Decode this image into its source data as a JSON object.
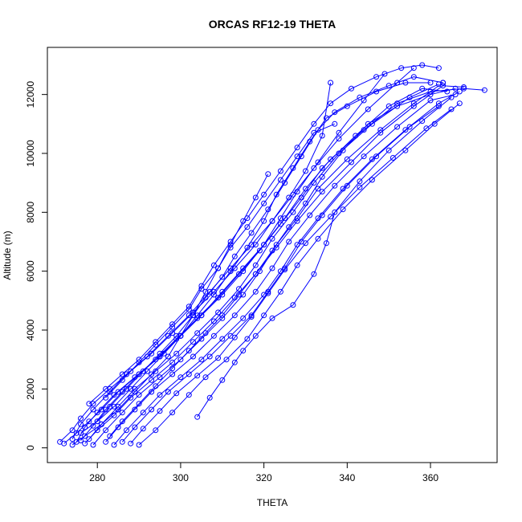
{
  "chart_data": {
    "type": "scatter",
    "title": "ORCAS RF12-19 THETA",
    "xlabel": "THETA",
    "ylabel": "Altitude (m)",
    "xlim": [
      268,
      376
    ],
    "ylim": [
      -500,
      13600
    ],
    "xticks": [
      280,
      300,
      320,
      340,
      360
    ],
    "yticks": [
      0,
      2000,
      4000,
      6000,
      8000,
      10000,
      12000
    ],
    "grid": false,
    "legend": "none",
    "marker": "open-circle",
    "line_style": "connected",
    "series_color": "#0000ff",
    "series": [
      {
        "x": [
          271,
          274,
          276,
          279,
          283,
          288,
          293,
          298,
          303,
          308,
          313,
          318,
          322,
          326,
          330,
          334,
          336
        ],
        "y": [
          200,
          600,
          1000,
          1500,
          2000,
          2600,
          3200,
          3900,
          4600,
          5300,
          6100,
          6900,
          7700,
          8500,
          9400,
          10600,
          12400
        ]
      },
      {
        "x": [
          272,
          275,
          278,
          281,
          285,
          290,
          295,
          300,
          305,
          310,
          315,
          320,
          324,
          328,
          333,
          338,
          344,
          349
        ],
        "y": [
          150,
          500,
          900,
          1300,
          1900,
          2500,
          3100,
          3800,
          4500,
          5200,
          6000,
          6900,
          7800,
          8700,
          9700,
          10700,
          11800,
          12700
        ]
      },
      {
        "x": [
          274,
          276,
          279,
          283,
          287,
          292,
          297,
          302,
          307,
          312,
          317,
          322,
          327,
          332,
          338,
          345,
          352,
          356
        ],
        "y": [
          300,
          800,
          1300,
          1900,
          2500,
          3100,
          3800,
          4500,
          5300,
          6100,
          6900,
          7700,
          8600,
          9500,
          10500,
          11500,
          12400,
          12900
        ]
      },
      {
        "x": [
          275,
          277,
          280,
          284,
          289,
          294,
          299,
          304,
          309,
          314,
          319,
          324,
          329,
          334,
          342,
          350,
          358,
          364
        ],
        "y": [
          200,
          700,
          1200,
          1800,
          2400,
          3000,
          3700,
          4400,
          5100,
          5900,
          6700,
          7600,
          8500,
          9500,
          10600,
          11600,
          12200,
          12100
        ]
      },
      {
        "x": [
          276,
          279,
          282,
          286,
          290,
          295,
          300,
          305,
          310,
          315,
          320,
          325,
          330,
          336,
          344,
          352,
          360,
          368,
          373
        ],
        "y": [
          250,
          750,
          1300,
          1900,
          2500,
          3100,
          3800,
          4500,
          5300,
          6100,
          6900,
          7800,
          8800,
          9800,
          10800,
          11700,
          12100,
          12200,
          12150
        ]
      },
      {
        "x": [
          277,
          280,
          284,
          288,
          293,
          298,
          303,
          308,
          313,
          318,
          323,
          328,
          334,
          341,
          348,
          356,
          363,
          368
        ],
        "y": [
          150,
          600,
          1100,
          1700,
          2300,
          2900,
          3600,
          4300,
          5100,
          5900,
          6800,
          7700,
          8700,
          9700,
          10700,
          11600,
          12300,
          12250
        ]
      },
      {
        "x": [
          278,
          281,
          285,
          289,
          294,
          299,
          304,
          309,
          314,
          318,
          322,
          327,
          332,
          338,
          346,
          355,
          362
        ],
        "y": [
          300,
          800,
          1400,
          2000,
          2600,
          3200,
          3900,
          4600,
          5400,
          6200,
          7100,
          8000,
          9000,
          10000,
          11000,
          11900,
          12350
        ]
      },
      {
        "x": [
          279,
          282,
          286,
          290,
          295,
          300,
          305,
          310,
          315,
          319,
          323,
          328,
          333,
          340,
          348,
          356,
          363
        ],
        "y": [
          100,
          600,
          1200,
          1800,
          2400,
          3000,
          3700,
          4400,
          5200,
          6000,
          6900,
          7800,
          8800,
          9800,
          10800,
          11700,
          12400
        ]
      },
      {
        "x": [
          282,
          285,
          289,
          293,
          298,
          303,
          308,
          313,
          318,
          322,
          326,
          331,
          337,
          344,
          352,
          360,
          366
        ],
        "y": [
          200,
          700,
          1300,
          1900,
          2500,
          3100,
          3800,
          4500,
          5300,
          6100,
          7000,
          7900,
          8900,
          9900,
          10900,
          11800,
          12000
        ]
      },
      {
        "x": [
          284,
          287,
          291,
          295,
          300,
          305,
          310,
          315,
          320,
          324,
          328,
          333,
          339,
          346,
          354,
          362,
          367
        ],
        "y": [
          100,
          600,
          1200,
          1800,
          2400,
          3000,
          3700,
          4400,
          5200,
          6000,
          6900,
          7800,
          8800,
          9800,
          10800,
          11700,
          12100
        ]
      },
      {
        "x": [
          286,
          289,
          293,
          297,
          302,
          307,
          312,
          317,
          321,
          325,
          329,
          334,
          340,
          347,
          355,
          362
        ],
        "y": [
          200,
          700,
          1300,
          1900,
          2500,
          3100,
          3800,
          4500,
          5300,
          6100,
          7000,
          7900,
          8900,
          9900,
          10900,
          11600
        ]
      },
      {
        "x": [
          288,
          291,
          295,
          299,
          304,
          309,
          313,
          317,
          321,
          325,
          330,
          336,
          343,
          351,
          359,
          365
        ],
        "y": [
          150,
          650,
          1250,
          1850,
          2450,
          3050,
          3750,
          4450,
          5250,
          6050,
          6950,
          7850,
          8850,
          9850,
          10850,
          11500
        ]
      },
      {
        "x": [
          290,
          294,
          298,
          302,
          306,
          311,
          316,
          320,
          324,
          328,
          333,
          339,
          346,
          354,
          361,
          367
        ],
        "y": [
          100,
          600,
          1200,
          1800,
          2400,
          3000,
          3700,
          4500,
          5300,
          6200,
          7100,
          8100,
          9100,
          10100,
          11000,
          11700
        ]
      },
      {
        "x": [
          304,
          307,
          310,
          313,
          315,
          318,
          322,
          327,
          332,
          335,
          337,
          343,
          350,
          358,
          365
        ],
        "y": [
          1050,
          1700,
          2300,
          2900,
          3300,
          3800,
          4400,
          4850,
          5900,
          6950,
          8000,
          9050,
          10100,
          11100,
          11900
        ]
      },
      {
        "x": [
          276,
          280,
          284,
          288,
          292,
          296,
          300,
          304,
          308,
          312,
          316,
          320,
          323,
          327,
          331,
          335,
          340,
          347,
          354,
          360
        ],
        "y": [
          500,
          900,
          1400,
          2000,
          2600,
          3200,
          3800,
          4500,
          5200,
          6000,
          6800,
          7700,
          8600,
          9500,
          10400,
          11200,
          11600,
          12100,
          12400,
          12400
        ]
      },
      {
        "x": [
          280,
          283,
          287,
          291,
          295,
          299,
          303,
          306,
          310,
          313,
          317,
          321,
          325,
          329,
          333,
          337,
          343,
          350,
          356,
          363
        ],
        "y": [
          900,
          1400,
          2000,
          2600,
          3200,
          3800,
          4500,
          5100,
          5800,
          6500,
          7300,
          8100,
          9000,
          9900,
          10800,
          11400,
          11900,
          12300,
          12600,
          12400
        ]
      },
      {
        "x": [
          282,
          286,
          290,
          294,
          298,
          302,
          305,
          309,
          312,
          316,
          320,
          324,
          328,
          332,
          337
        ],
        "y": [
          1700,
          2300,
          2900,
          3500,
          4100,
          4700,
          5400,
          6100,
          6800,
          7500,
          8300,
          9100,
          9900,
          10700,
          11000
        ]
      },
      {
        "x": [
          274,
          277,
          281,
          285,
          289,
          293,
          297,
          300,
          303,
          306,
          309,
          312,
          315,
          318,
          321
        ],
        "y": [
          100,
          400,
          800,
          1300,
          1900,
          2500,
          3100,
          3800,
          4500,
          5300,
          6100,
          6900,
          7700,
          8500,
          9300
        ]
      },
      {
        "x": [
          278,
          282,
          286,
          290,
          294,
          298,
          302,
          305,
          308,
          312,
          316,
          320,
          324,
          328,
          332,
          336,
          341,
          347,
          353,
          358,
          362
        ],
        "y": [
          1500,
          2000,
          2500,
          3000,
          3600,
          4200,
          4800,
          5500,
          6200,
          7000,
          7800,
          8600,
          9400,
          10200,
          11000,
          11700,
          12200,
          12600,
          12900,
          13000,
          12900
        ]
      },
      {
        "x": [
          283,
          286,
          290,
          294,
          298,
          302,
          306,
          310,
          314,
          318,
          322,
          326,
          330,
          334,
          339,
          345,
          352,
          360,
          366
        ],
        "y": [
          400,
          900,
          1500,
          2100,
          2700,
          3300,
          3900,
          4500,
          5200,
          5900,
          6700,
          7500,
          8300,
          9200,
          10100,
          11000,
          11600,
          12000,
          12200
        ]
      }
    ]
  }
}
